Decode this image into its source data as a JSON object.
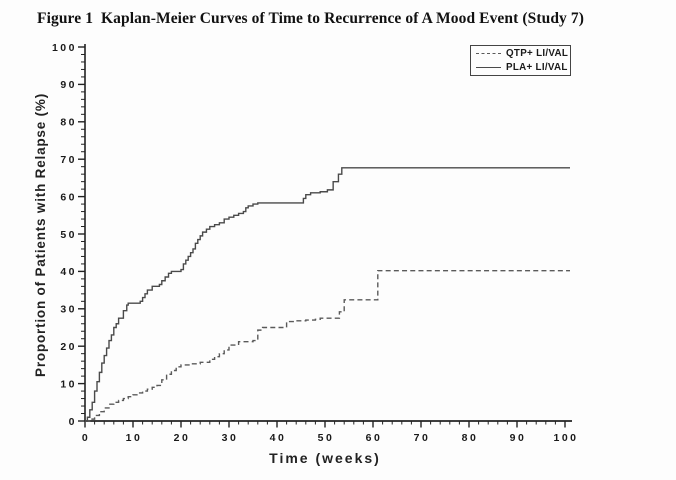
{
  "title": "Figure 1  Kaplan-Meier Curves of Time to Recurrence of A Mood Event (Study 7)",
  "chart_data": {
    "type": "line",
    "subtype": "kaplan-meier-step",
    "title": "Figure 1  Kaplan-Meier Curves of Time to Recurrence of A Mood Event (Study 7)",
    "xlabel": "Time (weeks)",
    "ylabel": "Proportion of Patients with Relapse (%)",
    "xlim": [
      0,
      100
    ],
    "ylim": [
      0,
      100
    ],
    "x_major_ticks": [
      0,
      10,
      20,
      30,
      40,
      50,
      60,
      70,
      80,
      90,
      100
    ],
    "x_minor_tick_step": 2,
    "y_major_ticks": [
      0,
      10,
      20,
      30,
      40,
      50,
      60,
      70,
      80,
      90,
      100
    ],
    "y_minor_tick_step": 2,
    "grid": false,
    "legend_position": "top-right",
    "axis_color": "#222222",
    "series": [
      {
        "name": "QTP+ LI/VAL",
        "line_style": "dashed",
        "color": "#5a5a5a",
        "final_value": 40,
        "points": [
          [
            0,
            0
          ],
          [
            1,
            0.5
          ],
          [
            2,
            1.5
          ],
          [
            3,
            2.5
          ],
          [
            4,
            3.5
          ],
          [
            5,
            4.5
          ],
          [
            6,
            5
          ],
          [
            7,
            5.5
          ],
          [
            8,
            6
          ],
          [
            9,
            6.5
          ],
          [
            10,
            7
          ],
          [
            11,
            7.5
          ],
          [
            12,
            8
          ],
          [
            13,
            8.5
          ],
          [
            14,
            9
          ],
          [
            15,
            9.5
          ],
          [
            16,
            11
          ],
          [
            17,
            12.5
          ],
          [
            18,
            13.5
          ],
          [
            19,
            14.5
          ],
          [
            20,
            15
          ],
          [
            22,
            15.3
          ],
          [
            24,
            15.7
          ],
          [
            26,
            16.5
          ],
          [
            27,
            17.2
          ],
          [
            28,
            18
          ],
          [
            29,
            19
          ],
          [
            30,
            20.3
          ],
          [
            32,
            21.2
          ],
          [
            35,
            21.5
          ],
          [
            36,
            24.3
          ],
          [
            37,
            25
          ],
          [
            42,
            26.6
          ],
          [
            44,
            26.8
          ],
          [
            46,
            27
          ],
          [
            48,
            27.2
          ],
          [
            49,
            27.5
          ],
          [
            53,
            29.2
          ],
          [
            54,
            32.4
          ],
          [
            61,
            40.2
          ],
          [
            100,
            40.2
          ]
        ]
      },
      {
        "name": "PLA+ LI/VAL",
        "line_style": "solid",
        "color": "#4a4a4a",
        "final_value": 68,
        "points": [
          [
            0,
            0
          ],
          [
            0.5,
            1
          ],
          [
            1,
            3
          ],
          [
            1.5,
            5
          ],
          [
            2,
            8
          ],
          [
            2.5,
            10.5
          ],
          [
            3,
            13
          ],
          [
            3.5,
            15.5
          ],
          [
            4,
            17.5
          ],
          [
            4.5,
            19.5
          ],
          [
            5,
            21.5
          ],
          [
            5.5,
            23
          ],
          [
            6,
            25
          ],
          [
            6.5,
            26
          ],
          [
            7,
            27.5
          ],
          [
            8,
            29.5
          ],
          [
            8.7,
            31
          ],
          [
            9,
            31.5
          ],
          [
            11.5,
            32
          ],
          [
            12,
            33
          ],
          [
            12.5,
            34
          ],
          [
            13,
            35
          ],
          [
            14,
            36
          ],
          [
            15.5,
            36.5
          ],
          [
            16,
            37.5
          ],
          [
            16.7,
            38.5
          ],
          [
            17.4,
            39.5
          ],
          [
            18,
            40
          ],
          [
            20,
            40.5
          ],
          [
            20.5,
            42
          ],
          [
            21,
            43
          ],
          [
            21.5,
            44
          ],
          [
            22,
            45
          ],
          [
            22.5,
            46
          ],
          [
            23,
            47.5
          ],
          [
            23.5,
            48.5
          ],
          [
            24,
            49.5
          ],
          [
            24.5,
            50.5
          ],
          [
            25.3,
            51.3
          ],
          [
            26,
            52
          ],
          [
            27,
            52.5
          ],
          [
            28,
            53
          ],
          [
            29,
            54
          ],
          [
            30,
            54.5
          ],
          [
            31,
            55
          ],
          [
            32,
            55.5
          ],
          [
            33,
            56
          ],
          [
            33.5,
            57
          ],
          [
            34,
            57.5
          ],
          [
            35,
            58
          ],
          [
            36,
            58.3
          ],
          [
            45.5,
            59.5
          ],
          [
            46,
            60.5
          ],
          [
            47,
            61
          ],
          [
            49,
            61.3
          ],
          [
            50.5,
            61.8
          ],
          [
            51.7,
            64
          ],
          [
            52.8,
            66
          ],
          [
            53.5,
            67.7
          ],
          [
            100,
            67.7
          ]
        ]
      }
    ]
  }
}
